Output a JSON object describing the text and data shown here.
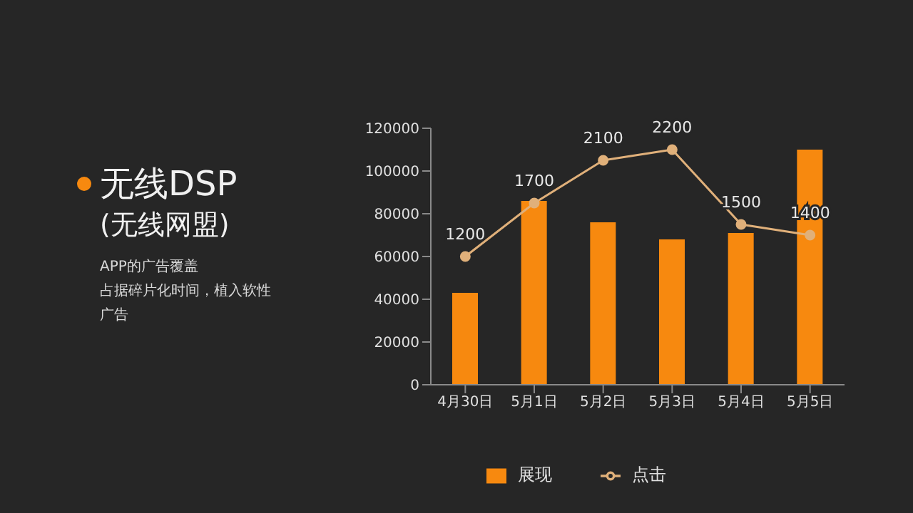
{
  "chart_data": {
    "type": "bar",
    "title": "无线DSP",
    "subtitle": "(无线网盟)",
    "annotations": [
      "APP的广告覆盖",
      "占据碎片化时间，植入软性",
      "广告"
    ],
    "categories": [
      "4月30日",
      "5月1日",
      "5月2日",
      "5月3日",
      "5月4日",
      "5月5日"
    ],
    "series": [
      {
        "name": "展现",
        "color": "#f7890f",
        "values": [
          43000,
          86000,
          76000,
          68000,
          71000,
          110000
        ]
      },
      {
        "name": "点击",
        "type": "line",
        "axis": "y2",
        "color": "#e0b07a",
        "marker": "circle",
        "values": [
          1200,
          1700,
          2100,
          2200,
          1500,
          1400
        ],
        "value_labels": [
          "1200",
          "1700",
          "2100",
          "2200",
          "1500",
          "1400"
        ]
      }
    ],
    "ylim": [
      0,
      120000
    ],
    "yticks": [
      0,
      20000,
      40000,
      60000,
      80000,
      100000,
      120000
    ],
    "y2lim": [
      0,
      2400
    ],
    "legend": "bottom"
  }
}
